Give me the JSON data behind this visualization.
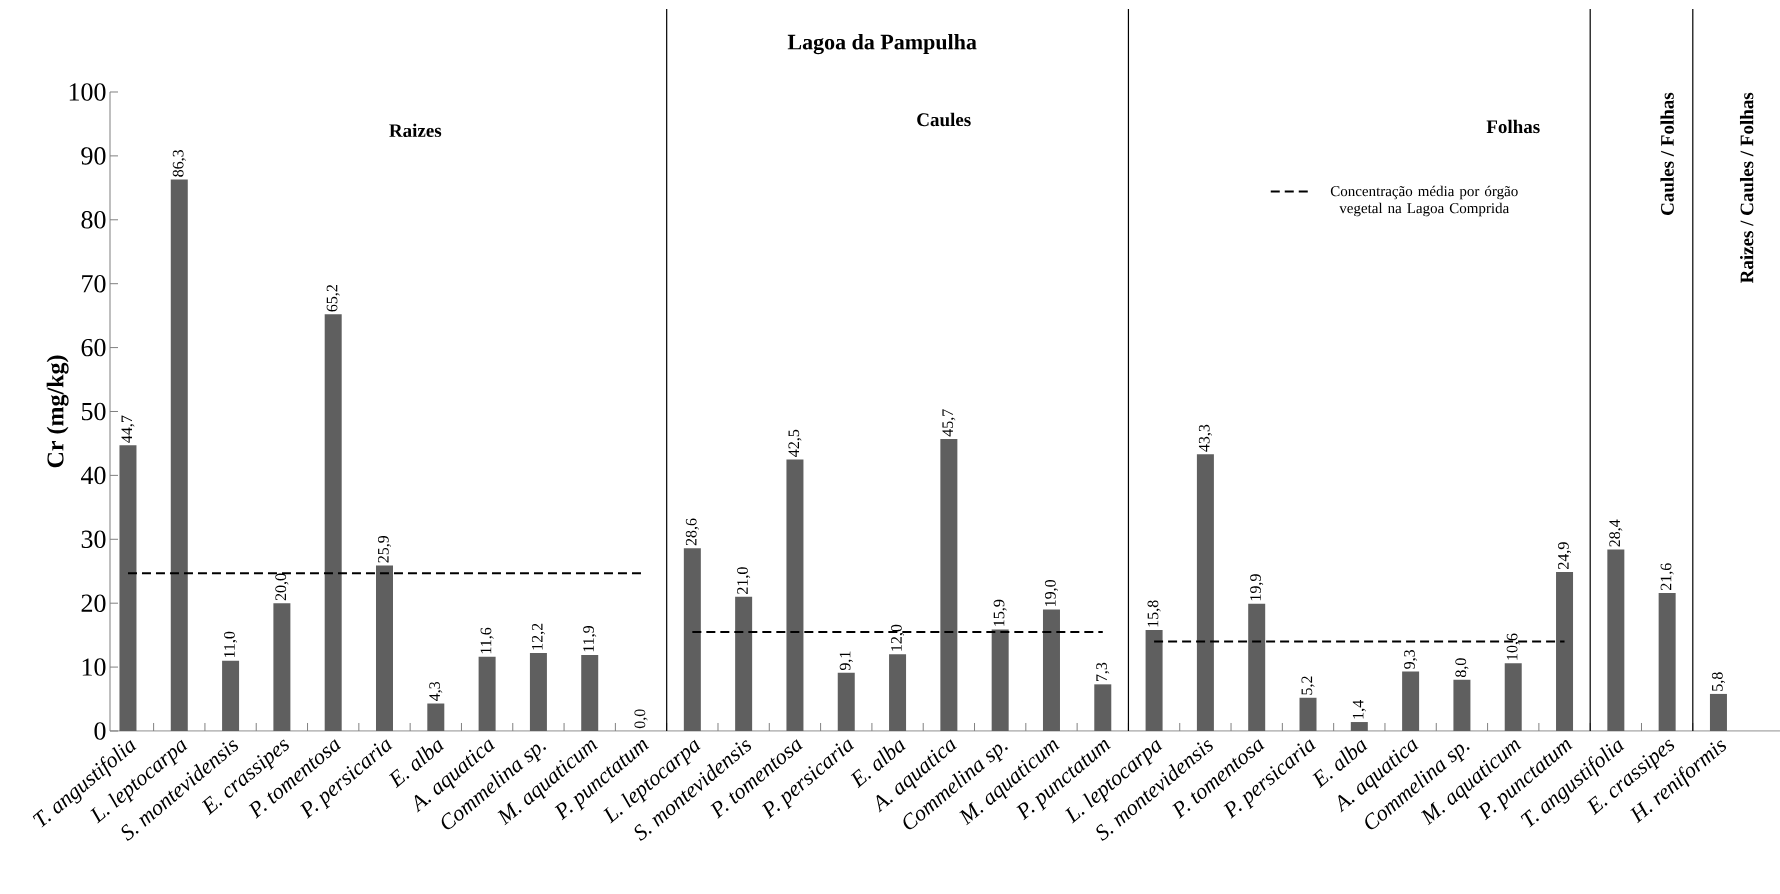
{
  "chart_data": {
    "type": "bar",
    "title": "Lagoa da Pampulha",
    "ylabel": "Cr (mg/kg)",
    "categories": [
      "T. angustifolia",
      "L. leptocarpa",
      "S. montevidensis",
      "E. crassipes",
      "P. tomentosa",
      "P. persicaria",
      "E. alba",
      "A. aquatica",
      "Commelina sp.",
      "M. aquaticum",
      "P. punctatum",
      "L. leptocarpa",
      "S. montevidensis",
      "P. tomentosa",
      "P. persicaria",
      "E. alba",
      "A. aquatica",
      "Commelina sp.",
      "M. aquaticum",
      "P. punctatum",
      "L. leptocarpa",
      "S. montevidensis",
      "P. tomentosa",
      "P. persicaria",
      "E. alba",
      "A. aquatica",
      "Commelina sp.",
      "M. aquaticum",
      "P. punctatum",
      "T. angustifolia",
      "E. crassipes",
      "H. reniformis"
    ],
    "series": [
      {
        "color": "#5f5f5f",
        "values": [
          44.7,
          86.3,
          11.0,
          20.0,
          65.2,
          25.9,
          4.3,
          11.6,
          12.2,
          11.9,
          0.0,
          28.6,
          21.0,
          42.5,
          9.1,
          12.0,
          45.7,
          15.9,
          19.0,
          7.3,
          15.8,
          43.3,
          19.9,
          5.2,
          1.4,
          9.3,
          8.0,
          10.6,
          24.9,
          28.4,
          21.6,
          5.8
        ],
        "value_labels": [
          "44,7",
          "86,3",
          "11,0",
          "20,0",
          "65,2",
          "25,9",
          "4,3",
          "11,6",
          "12,2",
          "11,9",
          "0,0",
          "28,6",
          "21,0",
          "42,5",
          "9,1",
          "12,0",
          "45,7",
          "15,9",
          "19,0",
          "7,3",
          "15,8",
          "43,3",
          "19,9",
          "5,2",
          "1,4",
          "9,3",
          "8,0",
          "10,6",
          "24,9",
          "28,4",
          "21,6",
          "5,8"
        ]
      },
      {
        "type": "line",
        "name": "Concentração média por órgão vegetal na Lagoa Comprida",
        "color": "#000000",
        "line_style": "dashed",
        "values": [
          24.7,
          24.7,
          24.7,
          24.7,
          24.7,
          24.7,
          24.7,
          24.7,
          24.7,
          24.7,
          24.7,
          15.5,
          15.5,
          15.5,
          15.5,
          15.5,
          15.5,
          15.5,
          15.5,
          15.5,
          14.0,
          14.0,
          14.0,
          14.0,
          14.0,
          14.0,
          14.0,
          14.0,
          14.0,
          null,
          null,
          null
        ]
      }
    ],
    "ylim": [
      0,
      100
    ],
    "yticks": [
      0,
      10,
      20,
      30,
      40,
      50,
      60,
      70,
      80,
      90,
      100
    ],
    "annotations": [
      "Raizes",
      "Caules",
      "Folhas",
      "Caules / Folhas",
      "Raizes / Caules / Folhas"
    ],
    "legend": "top right",
    "grid": false
  }
}
